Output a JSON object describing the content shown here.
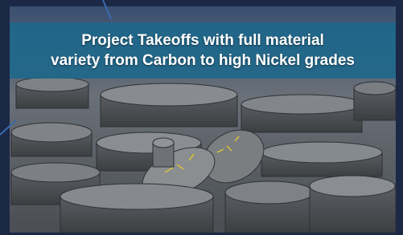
{
  "banner": {
    "lines": [
      "Project Takeoffs with full material",
      "variety from Carbon to high Nickel grades"
    ]
  }
}
